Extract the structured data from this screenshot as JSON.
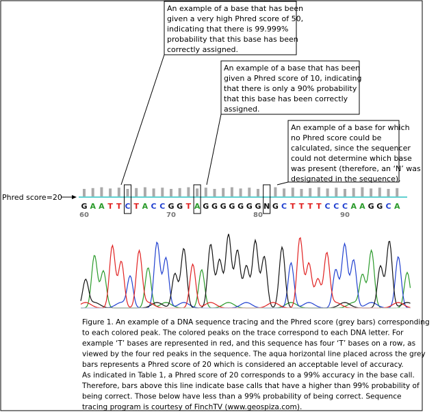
{
  "callouts": [
    {
      "lines": [
        "An example of a base that has been",
        "given a very high Phred score of 50,",
        "indicating that there is 99.999%",
        "probability that this base has been",
        "correctly assigned."
      ]
    },
    {
      "lines": [
        "An example of a base that has been",
        "given a Phred score of 10, indicating",
        "that there is only a 90% probability",
        "that this base has been correctly",
        "assigned."
      ]
    },
    {
      "lines": [
        "An example of a base for which",
        "no Phred score could be",
        "calculated, since the sequencer",
        "could not determine which base",
        "was present (therefore, an ‘N’ was",
        "designated in the sequence)."
      ]
    }
  ],
  "threshold_label": "Phred score=20",
  "sequence": [
    "G",
    "A",
    "A",
    "T",
    "T",
    "C",
    "T",
    "A",
    "C",
    "C",
    "G",
    "G",
    "T",
    "A",
    "G",
    "G",
    "G",
    "G",
    "G",
    "G",
    "G",
    "N",
    "G",
    "C",
    "T",
    "T",
    "T",
    "T",
    "C",
    "C",
    "C",
    "A",
    "A",
    "G",
    "G",
    "C",
    "A"
  ],
  "positions": [
    60,
    70,
    80,
    90
  ],
  "caption": [
    "Figure 1. An example of a DNA sequence tracing and the Phred score (grey bars) corresponding",
    "to each colored peak.  The colored peaks on the trace correspond to each DNA letter.  For",
    "example ‘T’ bases are represented in red, and this sequence has four ‘T’ bases on a row, as",
    "viewed by the four red peaks in the sequence.  The aqua horizontal line placed across the grey",
    "bars represents a Phred score of 20 which is considered an acceptable level of accuracy.",
    "As indicated in Table 1, a Phred score of 20 corresponds to a 99% accuracy in the base call.",
    "Therefore, bars above this line indicate base calls that have a higher than 99% probability of",
    "being correct. Those below have less than a 99% probability of being correct.  Sequence",
    "tracing program is courtesy of FinchTV (www.geospiza.com)."
  ]
}
